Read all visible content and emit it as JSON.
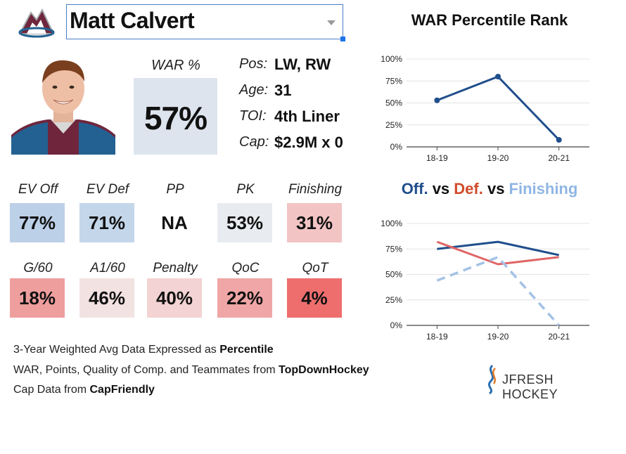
{
  "player": {
    "name": "Matt Calvert",
    "war_label": "WAR %",
    "war_value": "57%"
  },
  "info": [
    {
      "key": "Pos:",
      "value": "LW, RW"
    },
    {
      "key": "Age:",
      "value": "31"
    },
    {
      "key": "TOI:",
      "value": "4th Liner"
    },
    {
      "key": "Cap:",
      "value": "$2.9M x 0"
    }
  ],
  "stats_row1": [
    {
      "label": "EV Off",
      "value": "77%",
      "color": "#bcd0e8"
    },
    {
      "label": "EV Def",
      "value": "71%",
      "color": "#c4d6ea"
    },
    {
      "label": "PP",
      "value": "NA",
      "color": "#ffffff"
    },
    {
      "label": "PK",
      "value": "53%",
      "color": "#e8ebef"
    },
    {
      "label": "Finishing",
      "value": "31%",
      "color": "#f2c4c4"
    }
  ],
  "stats_row2": [
    {
      "label": "G/60",
      "value": "18%",
      "color": "#ef9e9e"
    },
    {
      "label": "A1/60",
      "value": "46%",
      "color": "#f3e2e2"
    },
    {
      "label": "Penalty",
      "value": "40%",
      "color": "#f3d3d3"
    },
    {
      "label": "QoC",
      "value": "22%",
      "color": "#f0a6a6"
    },
    {
      "label": "QoT",
      "value": "4%",
      "color": "#ee6e6e"
    }
  ],
  "footer": {
    "line1_pre": "3-Year Weighted Avg Data Expressed as ",
    "line1_bold": "Percentile",
    "line2_pre": "WAR, Points, Quality of Comp. and Teammates from ",
    "line2_bold": "TopDownHockey",
    "line3_pre": "Cap Data from ",
    "line3_bold": "CapFriendly"
  },
  "brand": "JFRESH HOCKEY",
  "chart_titles": {
    "war": "WAR Percentile Rank",
    "part1": "Off.",
    "part2": " vs ",
    "part3": "Def.",
    "part4": " vs ",
    "part5": "Finishing"
  },
  "colors": {
    "off": "#1f4e8c",
    "def": "#e06666",
    "fin": "#a4c2e6",
    "def_title": "#d24a2a",
    "fin_title": "#8fb6e4"
  },
  "chart_data": [
    {
      "type": "line",
      "title": "WAR Percentile Rank",
      "categories": [
        "18-19",
        "19-20",
        "20-21"
      ],
      "ytick_labels": [
        "0%",
        "25%",
        "50%",
        "75%",
        "100%"
      ],
      "ylim": [
        0,
        100
      ],
      "series": [
        {
          "name": "WAR",
          "values": [
            53,
            80,
            8
          ]
        }
      ]
    },
    {
      "type": "line",
      "title": "Off. vs Def. vs Finishing",
      "categories": [
        "18-19",
        "19-20",
        "20-21"
      ],
      "ytick_labels": [
        "0%",
        "25%",
        "50%",
        "75%",
        "100%"
      ],
      "ylim": [
        0,
        100
      ],
      "series": [
        {
          "name": "Off.",
          "values": [
            75,
            82,
            69
          ]
        },
        {
          "name": "Def.",
          "values": [
            82,
            60,
            67
          ]
        },
        {
          "name": "Finishing",
          "values": [
            44,
            67,
            0
          ]
        }
      ]
    }
  ]
}
